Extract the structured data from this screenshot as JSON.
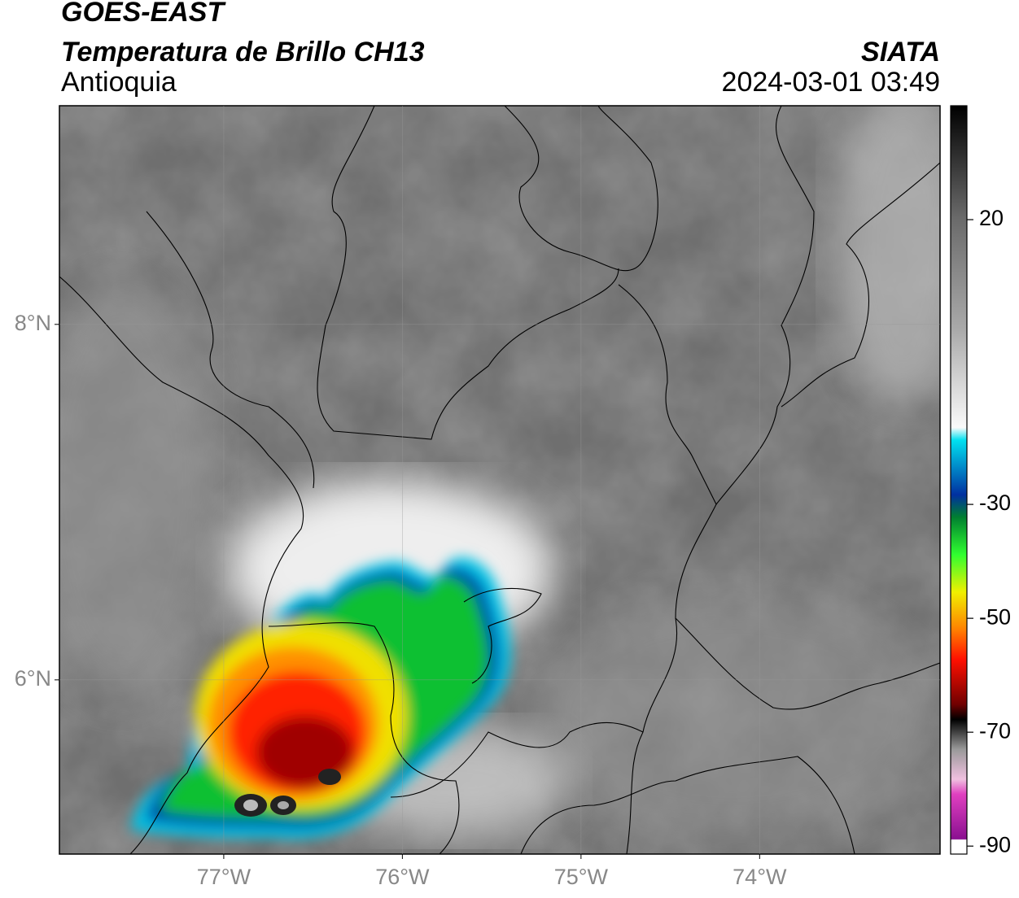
{
  "header": {
    "title": "GOES-EAST",
    "subtitle": "Temperatura de Brillo CH13",
    "region": "Antioquia",
    "source": "SIATA",
    "datetime": "2024-03-01 03:49"
  },
  "map": {
    "xlim": [
      -77.92,
      -72.99
    ],
    "ylim": [
      5.02,
      9.23
    ],
    "xticks": [
      {
        "value": -77,
        "label": "77°W"
      },
      {
        "value": -76,
        "label": "76°W"
      },
      {
        "value": -75,
        "label": "75°W"
      },
      {
        "value": -74,
        "label": "74°W"
      }
    ],
    "yticks": [
      {
        "value": 8,
        "label": "8°N"
      },
      {
        "value": 6,
        "label": "6°N"
      }
    ]
  },
  "colorbar": {
    "lim": [
      -91.4,
      40
    ],
    "ticks": [
      20,
      -30,
      -50,
      -70,
      -90
    ]
  }
}
